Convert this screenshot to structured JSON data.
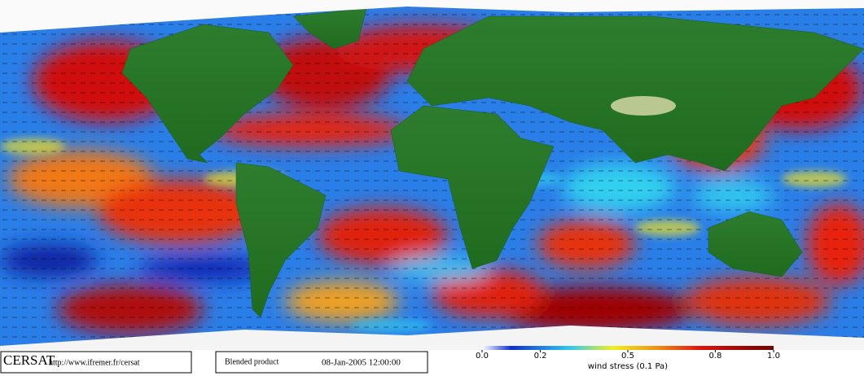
{
  "footer": {
    "logo": "CERSAT",
    "url": "http://www.ifremer.fr/cersat",
    "product": "Blended product",
    "timestamp": "08-Jan-2005 12:00:00"
  },
  "colorbar": {
    "range": [
      0,
      1
    ],
    "ticks": [
      {
        "value": 0,
        "label": "0.0"
      },
      {
        "value": 0.2,
        "label": "0.2"
      },
      {
        "value": 0.5,
        "label": "0.5"
      },
      {
        "value": 0.8,
        "label": "0.8"
      },
      {
        "value": 1,
        "label": "1.0"
      }
    ],
    "label": "wind stress (0.1 Pa)"
  }
}
